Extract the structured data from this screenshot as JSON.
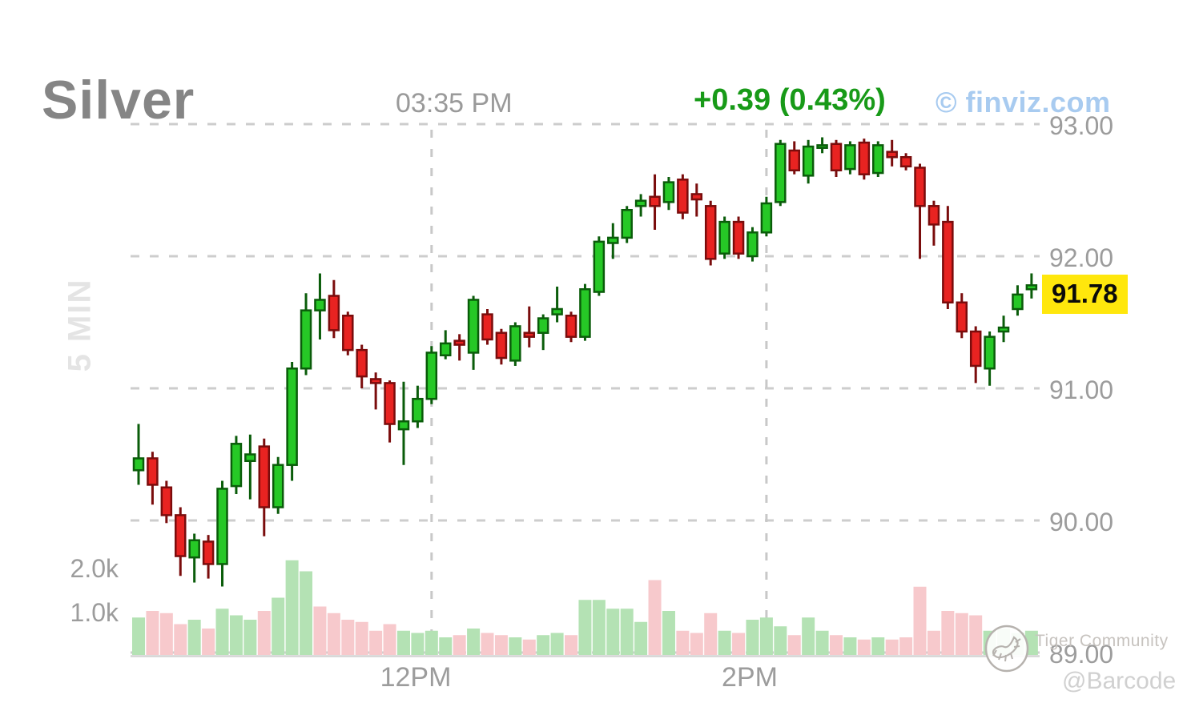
{
  "header": {
    "title": "Silver",
    "time": "03:35 PM",
    "change": "+0.39 (0.43%)",
    "brand": "© finviz.com"
  },
  "axes": {
    "interval_label": "5 MIN",
    "last_price": "91.78",
    "price_labels": [
      {
        "label": "93.00",
        "price": 93.0
      },
      {
        "label": "92.00",
        "price": 92.0
      },
      {
        "label": "91.00",
        "price": 91.0
      },
      {
        "label": "90.00",
        "price": 90.0
      },
      {
        "label": "89.00",
        "price": 89.0
      }
    ],
    "time_labels": [
      {
        "label": "12PM"
      },
      {
        "label": "2PM"
      }
    ],
    "volume_labels": [
      {
        "label": "2.0k",
        "value": 2000
      },
      {
        "label": "1.0k",
        "value": 1000
      }
    ]
  },
  "watermark": {
    "community": "Tiger Community",
    "handle": "@Barcode"
  },
  "colors": {
    "up": "#26c826",
    "up_dark": "#0a5c0a",
    "down": "#e82321",
    "down_dark": "#7a0c0c",
    "vol_up": "#b4e2b4",
    "vol_down": "#f7c9cc",
    "grid": "#cdcdcd",
    "grid_vertical": "#c8c8c8",
    "baseline": "#d4d4d4",
    "accent_green": "#189a18",
    "brand_blue": "#a8cbf0",
    "tag_yellow": "#ffe70c"
  },
  "chart_data": {
    "type": "candlestick",
    "title": "Silver",
    "interval": "5 MIN",
    "last_update": "03:35 PM",
    "change": "+0.39 (0.43%)",
    "last_price": 91.78,
    "ylim": [
      89.0,
      93.0
    ],
    "price_ticks": [
      93.0,
      92.0,
      91.0,
      90.0,
      89.0
    ],
    "volume_ticks": [
      2000,
      1000
    ],
    "time_ticks": [
      {
        "label": "12PM",
        "index": 21,
        "label_center_x": 519
      },
      {
        "label": "2PM",
        "index": 45,
        "label_center_x": 936
      }
    ],
    "grid": true,
    "legend": "none",
    "candle_fields": [
      "time",
      "open",
      "high",
      "low",
      "close"
    ],
    "candles": [
      [
        "10:15",
        90.38,
        90.73,
        90.27,
        90.47
      ],
      [
        "10:20",
        90.47,
        90.52,
        90.12,
        90.27
      ],
      [
        "10:25",
        90.25,
        90.3,
        89.98,
        90.04
      ],
      [
        "10:30",
        90.04,
        90.1,
        89.58,
        89.73
      ],
      [
        "10:35",
        89.72,
        89.9,
        89.53,
        89.85
      ],
      [
        "10:40",
        89.84,
        89.89,
        89.56,
        89.67
      ],
      [
        "10:45",
        89.67,
        90.3,
        89.5,
        90.24
      ],
      [
        "10:50",
        90.26,
        90.64,
        90.2,
        90.58
      ],
      [
        "10:55",
        90.45,
        90.65,
        90.16,
        90.5
      ],
      [
        "11:00",
        90.56,
        90.62,
        89.88,
        90.1
      ],
      [
        "11:05",
        90.1,
        90.48,
        90.05,
        90.42
      ],
      [
        "11:10",
        90.42,
        91.2,
        90.3,
        91.15
      ],
      [
        "11:15",
        91.15,
        91.72,
        91.1,
        91.59
      ],
      [
        "11:20",
        91.59,
        91.87,
        91.37,
        91.67
      ],
      [
        "11:25",
        91.7,
        91.82,
        91.38,
        91.44
      ],
      [
        "11:30",
        91.55,
        91.58,
        91.25,
        91.29
      ],
      [
        "11:35",
        91.29,
        91.33,
        91.0,
        91.09
      ],
      [
        "11:40",
        91.07,
        91.12,
        90.84,
        91.04
      ],
      [
        "11:45",
        91.04,
        91.06,
        90.59,
        90.73
      ],
      [
        "11:50",
        90.69,
        91.05,
        90.42,
        90.75
      ],
      [
        "11:55",
        90.75,
        91.02,
        90.7,
        90.92
      ],
      [
        "12:00",
        90.92,
        91.32,
        90.88,
        91.27
      ],
      [
        "12:05",
        91.25,
        91.44,
        91.22,
        91.34
      ],
      [
        "12:10",
        91.36,
        91.41,
        91.21,
        91.33
      ],
      [
        "12:15",
        91.27,
        91.7,
        91.14,
        91.67
      ],
      [
        "12:20",
        91.56,
        91.6,
        91.33,
        91.37
      ],
      [
        "12:25",
        91.42,
        91.45,
        91.18,
        91.23
      ],
      [
        "12:30",
        91.21,
        91.5,
        91.17,
        91.47
      ],
      [
        "12:35",
        91.42,
        91.62,
        91.31,
        91.39
      ],
      [
        "12:40",
        91.42,
        91.56,
        91.29,
        91.53
      ],
      [
        "12:45",
        91.56,
        91.77,
        91.5,
        91.6
      ],
      [
        "12:50",
        91.55,
        91.58,
        91.35,
        91.39
      ],
      [
        "12:55",
        91.39,
        91.79,
        91.36,
        91.75
      ],
      [
        "13:00",
        91.73,
        92.15,
        91.7,
        92.11
      ],
      [
        "13:05",
        92.1,
        92.25,
        91.98,
        92.14
      ],
      [
        "13:10",
        92.14,
        92.38,
        92.1,
        92.35
      ],
      [
        "13:15",
        92.38,
        92.47,
        92.3,
        92.42
      ],
      [
        "13:20",
        92.45,
        92.62,
        92.2,
        92.38
      ],
      [
        "13:25",
        92.41,
        92.6,
        92.35,
        92.56
      ],
      [
        "13:30",
        92.58,
        92.62,
        92.28,
        92.33
      ],
      [
        "13:35",
        92.47,
        92.55,
        92.3,
        92.43
      ],
      [
        "13:40",
        92.38,
        92.42,
        91.93,
        91.98
      ],
      [
        "13:45",
        92.02,
        92.3,
        91.98,
        92.26
      ],
      [
        "13:50",
        92.26,
        92.3,
        91.98,
        92.02
      ],
      [
        "13:55",
        92.0,
        92.22,
        91.96,
        92.18
      ],
      [
        "14:00",
        92.18,
        92.45,
        92.15,
        92.4
      ],
      [
        "14:05",
        92.41,
        92.88,
        92.38,
        92.85
      ],
      [
        "14:10",
        92.8,
        92.87,
        92.62,
        92.65
      ],
      [
        "14:15",
        92.61,
        92.88,
        92.55,
        92.83
      ],
      [
        "14:20",
        92.82,
        92.9,
        92.78,
        92.84
      ],
      [
        "14:25",
        92.85,
        92.88,
        92.6,
        92.65
      ],
      [
        "14:30",
        92.66,
        92.87,
        92.62,
        92.84
      ],
      [
        "14:35",
        92.86,
        92.89,
        92.58,
        92.62
      ],
      [
        "14:40",
        92.63,
        92.87,
        92.6,
        92.84
      ],
      [
        "14:45",
        92.79,
        92.88,
        92.68,
        92.75
      ],
      [
        "14:50",
        92.75,
        92.78,
        92.65,
        92.68
      ],
      [
        "14:55",
        92.67,
        92.7,
        91.98,
        92.38
      ],
      [
        "15:00",
        92.38,
        92.42,
        92.08,
        92.24
      ],
      [
        "15:05",
        92.26,
        92.38,
        91.6,
        91.65
      ],
      [
        "15:10",
        91.65,
        91.72,
        91.38,
        91.43
      ],
      [
        "15:15",
        91.43,
        91.47,
        91.04,
        91.17
      ],
      [
        "15:20",
        91.15,
        91.43,
        91.02,
        91.39
      ],
      [
        "15:25",
        91.43,
        91.55,
        91.35,
        91.46
      ],
      [
        "15:30",
        91.6,
        91.78,
        91.55,
        91.71
      ],
      [
        "15:35",
        91.75,
        91.87,
        91.68,
        91.78
      ]
    ],
    "volume_fields": [
      "volume",
      "direction"
    ],
    "volumes": [
      [
        850,
        "up"
      ],
      [
        1000,
        "down"
      ],
      [
        950,
        "down"
      ],
      [
        700,
        "down"
      ],
      [
        800,
        "up"
      ],
      [
        600,
        "down"
      ],
      [
        1050,
        "up"
      ],
      [
        900,
        "up"
      ],
      [
        800,
        "up"
      ],
      [
        1000,
        "down"
      ],
      [
        1300,
        "up"
      ],
      [
        2150,
        "up"
      ],
      [
        1900,
        "up"
      ],
      [
        1100,
        "down"
      ],
      [
        950,
        "down"
      ],
      [
        800,
        "down"
      ],
      [
        750,
        "down"
      ],
      [
        550,
        "down"
      ],
      [
        700,
        "down"
      ],
      [
        550,
        "up"
      ],
      [
        500,
        "up"
      ],
      [
        550,
        "up"
      ],
      [
        400,
        "up"
      ],
      [
        450,
        "down"
      ],
      [
        600,
        "up"
      ],
      [
        500,
        "down"
      ],
      [
        450,
        "down"
      ],
      [
        400,
        "up"
      ],
      [
        350,
        "down"
      ],
      [
        450,
        "up"
      ],
      [
        500,
        "up"
      ],
      [
        450,
        "down"
      ],
      [
        1250,
        "up"
      ],
      [
        1250,
        "up"
      ],
      [
        1050,
        "up"
      ],
      [
        1050,
        "up"
      ],
      [
        750,
        "up"
      ],
      [
        1700,
        "down"
      ],
      [
        1000,
        "up"
      ],
      [
        550,
        "down"
      ],
      [
        500,
        "down"
      ],
      [
        950,
        "down"
      ],
      [
        550,
        "up"
      ],
      [
        500,
        "down"
      ],
      [
        800,
        "up"
      ],
      [
        850,
        "up"
      ],
      [
        650,
        "up"
      ],
      [
        450,
        "down"
      ],
      [
        850,
        "up"
      ],
      [
        550,
        "up"
      ],
      [
        450,
        "down"
      ],
      [
        400,
        "up"
      ],
      [
        350,
        "down"
      ],
      [
        400,
        "up"
      ],
      [
        350,
        "down"
      ],
      [
        400,
        "down"
      ],
      [
        1550,
        "down"
      ],
      [
        550,
        "down"
      ],
      [
        1000,
        "down"
      ],
      [
        950,
        "down"
      ],
      [
        900,
        "down"
      ],
      [
        550,
        "up"
      ],
      [
        600,
        "up"
      ],
      [
        500,
        "up"
      ],
      [
        550,
        "up"
      ]
    ]
  }
}
